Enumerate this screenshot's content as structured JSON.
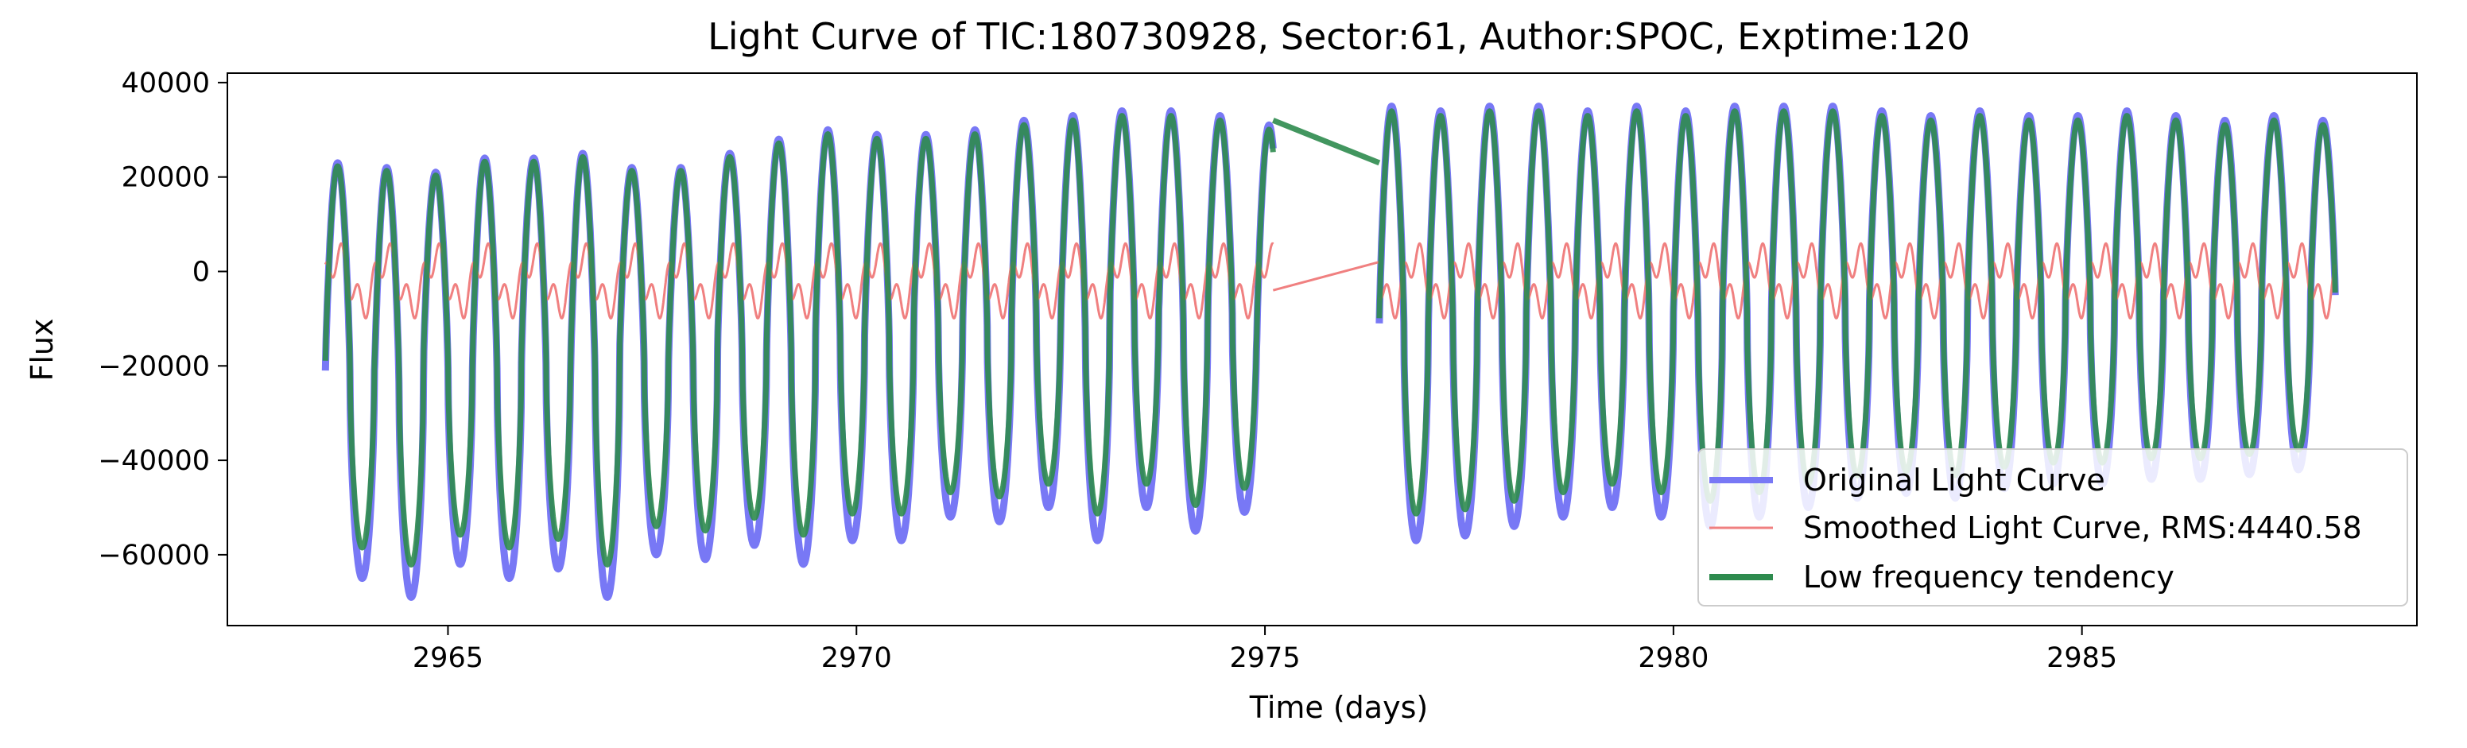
{
  "chart_data": {
    "type": "line",
    "title": "Light Curve of TIC:180730928, Sector:61, Author:SPOC, Exptime:120",
    "xlabel": "Time (days)",
    "ylabel": "Flux",
    "xlim": [
      2962.3,
      2989.1
    ],
    "ylim": [
      -75000,
      42000
    ],
    "x_ticks": [
      2965,
      2970,
      2975,
      2980,
      2985
    ],
    "x_tick_labels": [
      "2965",
      "2970",
      "2975",
      "2980",
      "2985"
    ],
    "y_ticks": [
      -60000,
      -40000,
      -20000,
      0,
      20000,
      40000
    ],
    "y_tick_labels": [
      "−60000",
      "−40000",
      "−20000",
      "0",
      "20000",
      "40000"
    ],
    "grid": false,
    "legend_position": "lower-right",
    "segments": [
      [
        2963.5,
        2975.1
      ],
      [
        2976.4,
        2988.1
      ]
    ],
    "period_days": 0.6,
    "series": [
      {
        "name": "Original Light Curve",
        "color": "#7878f5",
        "description": "Approx. sinusoidal variation with period ~0.6 d; maxima ~+22000 to +35000, minima ~-50000 to -70000",
        "max_first_segment": [
          23000,
          22000,
          21000,
          24000,
          24000,
          25000,
          22000,
          22000,
          25000,
          28000,
          30000,
          29000,
          29000,
          30000,
          32000,
          33000,
          34000,
          34000,
          33000,
          31000,
          32000,
          32000
        ],
        "min_first_segment": [
          -65000,
          -69000,
          -62000,
          -65000,
          -63000,
          -69000,
          -60000,
          -61000,
          -58000,
          -62000,
          -57000,
          -57000,
          -52000,
          -53000,
          -50000,
          -57000,
          -50000,
          -55000,
          -51000,
          -60000
        ],
        "max_second_segment": [
          35000,
          34000,
          35000,
          35000,
          34000,
          35000,
          34000,
          35000,
          35000,
          35000,
          34000,
          33000,
          34000,
          33000,
          33000,
          34000,
          33000,
          32000,
          33000,
          32000
        ],
        "min_second_segment": [
          -57000,
          -56000,
          -54000,
          -52000,
          -50000,
          -52000,
          -54000,
          -52000,
          -50000,
          -48000,
          -47000,
          -48000,
          -46000,
          -45000,
          -45000,
          -44000,
          -44000,
          -43000,
          -42000,
          -42000
        ]
      },
      {
        "name": "Smoothed Light Curve, RMS:4440.58",
        "color": "#f08080",
        "description": "Residual oscillating roughly between -11000 and +9000 around 0; straight line across the gap from about -4000 at 2975.1 to +2000 at 2976.4"
      },
      {
        "name": "Low frequency tendency",
        "color": "#2e8b4e",
        "description": "Follows the original curve closely; a straight segment bridges the data gap from about 32000 at 2975.1 to 23000 at 2976.4"
      }
    ]
  }
}
